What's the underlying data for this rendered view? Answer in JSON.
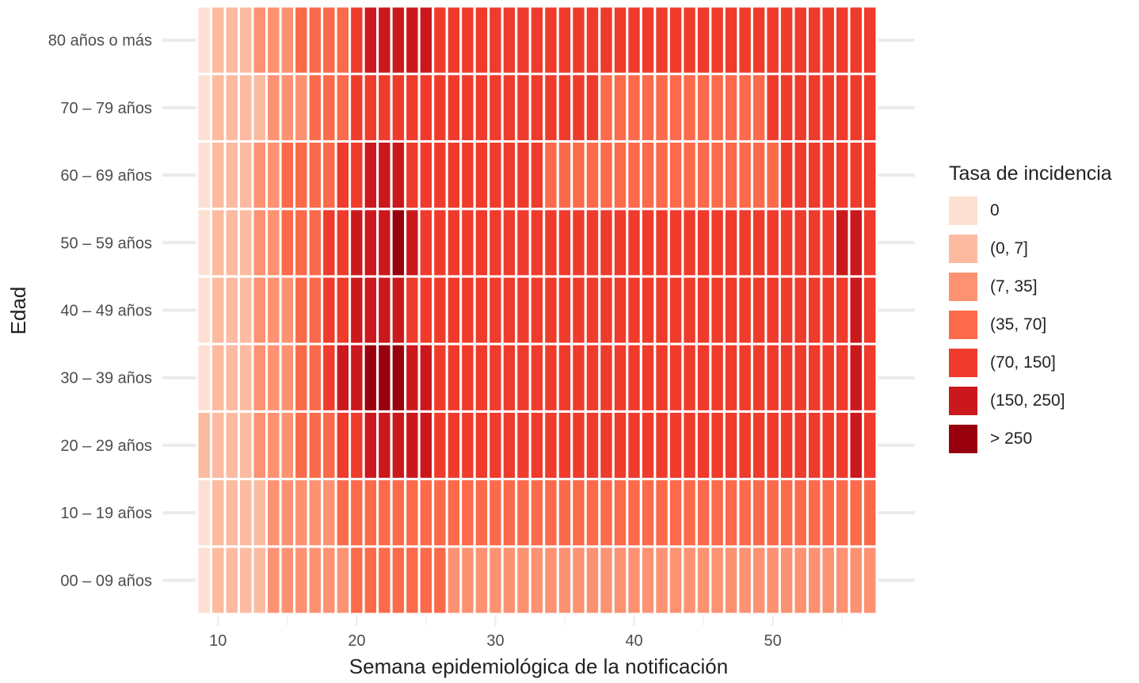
{
  "chart_data": {
    "type": "heatmap",
    "xlabel": "Semana epidemiológica de la notificación",
    "ylabel": "Edad",
    "x_weeks": [
      9,
      10,
      11,
      12,
      13,
      14,
      15,
      16,
      17,
      18,
      19,
      20,
      21,
      22,
      23,
      24,
      25,
      26,
      27,
      28,
      29,
      30,
      31,
      32,
      33,
      34,
      35,
      36,
      37,
      38,
      39,
      40,
      41,
      42,
      43,
      44,
      45,
      46,
      47,
      48,
      49,
      50,
      51,
      52,
      53,
      54,
      55,
      56,
      57
    ],
    "x_ticks": [
      10,
      20,
      30,
      40,
      50
    ],
    "x_range": [
      8.5,
      57.5
    ],
    "age_groups": [
      "00 – 09 años",
      "10 – 19 años",
      "20 – 29 años",
      "30 – 39 años",
      "40 – 49 años",
      "50 – 59 años",
      "60 – 69 años",
      "70 – 79 años",
      "80 años o más"
    ],
    "legend": {
      "title": "Tasa de incidencia",
      "placement": "right",
      "categories": [
        {
          "label": "0",
          "color": "#fee0d2"
        },
        {
          "label": "(0, 7]",
          "color": "#fcbba1"
        },
        {
          "label": "(7, 35]",
          "color": "#fc9272"
        },
        {
          "label": "(35, 70]",
          "color": "#fb6a4a"
        },
        {
          "label": "(70, 150]",
          "color": "#ef3b2c"
        },
        {
          "label": "(150, 250]",
          "color": "#cb181d"
        },
        {
          "label": "> 250",
          "color": "#99000d"
        }
      ]
    },
    "category_index_by_age_group": [
      [
        0,
        1,
        1,
        1,
        1,
        2,
        2,
        2,
        2,
        2,
        2,
        3,
        3,
        3,
        3,
        3,
        3,
        3,
        2,
        2,
        2,
        2,
        2,
        2,
        2,
        2,
        2,
        2,
        2,
        2,
        2,
        2,
        2,
        2,
        2,
        2,
        2,
        2,
        2,
        2,
        2,
        2,
        2,
        2,
        2,
        2,
        2,
        2,
        2
      ],
      [
        0,
        1,
        1,
        1,
        1,
        2,
        2,
        2,
        2,
        2,
        3,
        3,
        3,
        3,
        3,
        3,
        3,
        3,
        3,
        3,
        3,
        3,
        3,
        3,
        3,
        3,
        3,
        3,
        3,
        3,
        3,
        3,
        3,
        3,
        3,
        3,
        3,
        3,
        3,
        3,
        3,
        3,
        3,
        3,
        3,
        3,
        3,
        3,
        3
      ],
      [
        1,
        1,
        1,
        1,
        2,
        2,
        2,
        3,
        3,
        3,
        4,
        4,
        5,
        5,
        5,
        5,
        5,
        4,
        4,
        4,
        4,
        4,
        4,
        4,
        4,
        4,
        4,
        4,
        4,
        4,
        4,
        4,
        4,
        4,
        4,
        4,
        4,
        4,
        4,
        4,
        4,
        4,
        4,
        4,
        4,
        4,
        4,
        5,
        4
      ],
      [
        0,
        1,
        1,
        1,
        2,
        2,
        2,
        3,
        3,
        4,
        5,
        5,
        6,
        6,
        6,
        5,
        5,
        4,
        4,
        4,
        4,
        4,
        4,
        4,
        4,
        4,
        4,
        4,
        4,
        4,
        4,
        4,
        4,
        4,
        4,
        4,
        4,
        4,
        4,
        4,
        4,
        4,
        4,
        4,
        4,
        4,
        4,
        5,
        4
      ],
      [
        0,
        1,
        1,
        1,
        2,
        2,
        2,
        3,
        3,
        4,
        4,
        5,
        5,
        5,
        5,
        4,
        4,
        4,
        4,
        4,
        4,
        4,
        4,
        4,
        4,
        4,
        4,
        4,
        4,
        4,
        4,
        4,
        4,
        4,
        4,
        4,
        4,
        4,
        4,
        4,
        4,
        4,
        4,
        4,
        4,
        4,
        4,
        5,
        4
      ],
      [
        0,
        1,
        1,
        1,
        2,
        2,
        3,
        3,
        3,
        4,
        4,
        5,
        5,
        5,
        6,
        5,
        4,
        4,
        4,
        4,
        4,
        4,
        4,
        4,
        4,
        4,
        4,
        4,
        4,
        4,
        4,
        4,
        4,
        4,
        4,
        4,
        4,
        4,
        4,
        4,
        4,
        4,
        4,
        4,
        4,
        4,
        5,
        5,
        4
      ],
      [
        0,
        1,
        1,
        1,
        2,
        2,
        3,
        3,
        3,
        3,
        4,
        4,
        5,
        5,
        5,
        4,
        4,
        4,
        4,
        4,
        4,
        4,
        4,
        4,
        4,
        3,
        3,
        3,
        3,
        3,
        3,
        3,
        3,
        3,
        3,
        3,
        3,
        3,
        3,
        3,
        3,
        3,
        4,
        4,
        4,
        4,
        4,
        4,
        4
      ],
      [
        0,
        1,
        1,
        1,
        1,
        2,
        2,
        2,
        3,
        3,
        3,
        4,
        4,
        4,
        4,
        4,
        4,
        4,
        4,
        4,
        4,
        4,
        4,
        4,
        4,
        4,
        4,
        4,
        4,
        3,
        3,
        3,
        3,
        3,
        3,
        3,
        3,
        3,
        3,
        3,
        3,
        4,
        4,
        4,
        4,
        4,
        4,
        4,
        4
      ],
      [
        0,
        1,
        1,
        1,
        2,
        2,
        2,
        3,
        3,
        3,
        3,
        4,
        5,
        5,
        5,
        5,
        5,
        4,
        4,
        4,
        4,
        4,
        4,
        4,
        4,
        4,
        4,
        4,
        4,
        4,
        4,
        4,
        4,
        4,
        4,
        4,
        4,
        4,
        4,
        4,
        4,
        4,
        4,
        4,
        4,
        4,
        4,
        4,
        4
      ]
    ]
  }
}
